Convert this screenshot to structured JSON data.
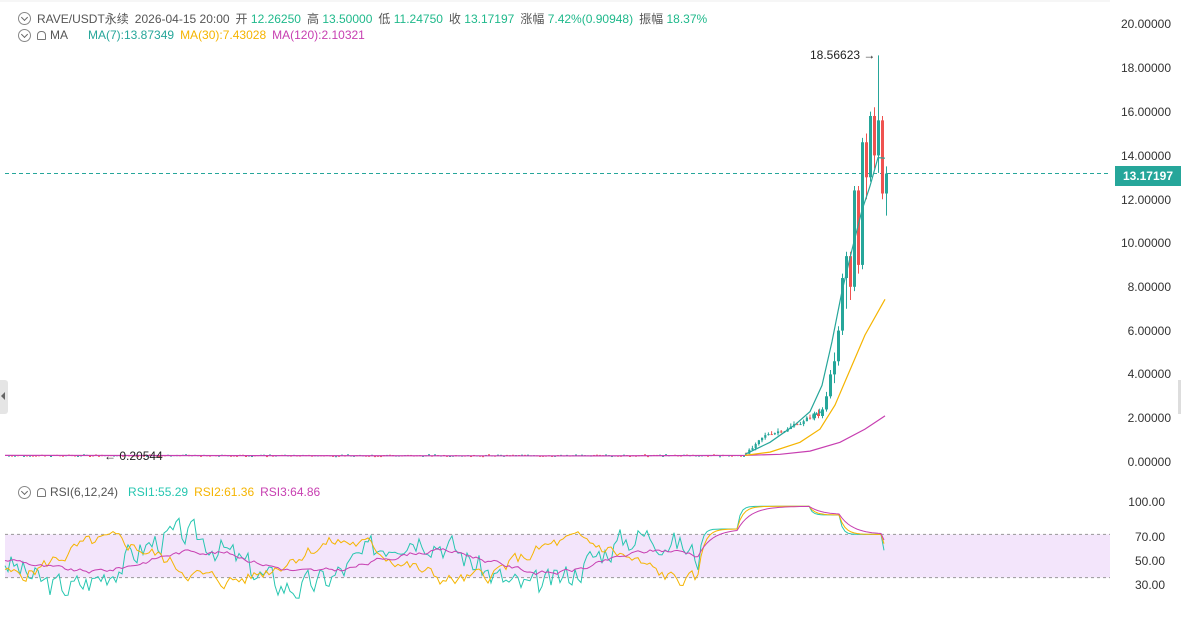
{
  "header": {
    "symbol": "RAVE/USDT永续",
    "datetime": "2026-04-15 20:00",
    "open_label": "开",
    "open_value": "12.26250",
    "high_label": "高",
    "high_value": "13.50000",
    "low_label": "低",
    "low_value": "11.24750",
    "close_label": "收",
    "close_value": "13.17197",
    "change_label": "涨幅",
    "change_value": "7.42%(0.90948)",
    "amplitude_label": "振幅",
    "amplitude_value": "18.37%"
  },
  "ma_legend": {
    "name": "MA",
    "ma7": "MA(7):13.87349",
    "ma30": "MA(30):7.43028",
    "ma120": "MA(120):2.10321"
  },
  "rsi_legend": {
    "name": "RSI(6,12,24)",
    "rsi1": "RSI1:55.29",
    "rsi2": "RSI2:61.36",
    "rsi3": "RSI3:64.86"
  },
  "price_axis": [
    "20.00000",
    "18.00000",
    "16.00000",
    "14.00000",
    "12.00000",
    "10.00000",
    "8.00000",
    "6.00000",
    "4.00000",
    "2.00000",
    "0.00000"
  ],
  "rsi_axis": [
    "100.00",
    "70.00",
    "50.00",
    "30.00"
  ],
  "last_price_tag": "13.17197",
  "annotations": {
    "high_marker": "18.56623",
    "low_marker": "0.20544"
  },
  "colors": {
    "up": "#26a69a",
    "down": "#ef5350",
    "ma7": "#26a69a",
    "ma30": "#f5b400",
    "ma120": "#c73fb1",
    "rsi1": "#26c6b0",
    "rsi2": "#f5b400",
    "rsi3": "#c73fb1",
    "rsi_band": "#f3e5fb"
  },
  "chart_data": {
    "type": "line",
    "title": "RAVE/USDT永续",
    "ylim": [
      0,
      20
    ],
    "highest": 18.56623,
    "lowest": 0.20544,
    "last_close": 13.17197,
    "recent_candles": [
      {
        "o": 2.0,
        "h": 2.3,
        "l": 1.9,
        "c": 2.2
      },
      {
        "o": 2.2,
        "h": 2.4,
        "l": 2.0,
        "c": 2.1
      },
      {
        "o": 2.1,
        "h": 2.5,
        "l": 2.0,
        "c": 2.4
      },
      {
        "o": 2.4,
        "h": 3.2,
        "l": 2.3,
        "c": 3.0
      },
      {
        "o": 3.0,
        "h": 4.2,
        "l": 2.9,
        "c": 4.0
      },
      {
        "o": 4.0,
        "h": 5.0,
        "l": 3.6,
        "c": 4.6
      },
      {
        "o": 4.6,
        "h": 6.2,
        "l": 4.4,
        "c": 6.0
      },
      {
        "o": 6.0,
        "h": 8.6,
        "l": 5.8,
        "c": 8.4
      },
      {
        "o": 8.4,
        "h": 9.6,
        "l": 7.0,
        "c": 9.4
      },
      {
        "o": 9.4,
        "h": 9.6,
        "l": 7.4,
        "c": 8.0
      },
      {
        "o": 8.0,
        "h": 12.6,
        "l": 7.8,
        "c": 12.4
      },
      {
        "o": 12.4,
        "h": 12.6,
        "l": 8.6,
        "c": 9.0
      },
      {
        "o": 9.0,
        "h": 14.8,
        "l": 8.8,
        "c": 14.6
      },
      {
        "o": 14.6,
        "h": 15.0,
        "l": 12.0,
        "c": 13.0
      },
      {
        "o": 13.0,
        "h": 16.0,
        "l": 12.8,
        "c": 15.8
      },
      {
        "o": 15.8,
        "h": 16.2,
        "l": 13.4,
        "c": 14.0
      },
      {
        "o": 14.0,
        "h": 18.56623,
        "l": 13.2,
        "c": 15.6
      },
      {
        "o": 15.6,
        "h": 15.8,
        "l": 12.0,
        "c": 12.26
      },
      {
        "o": 12.26,
        "h": 13.5,
        "l": 11.2475,
        "c": 13.17197
      }
    ],
    "rsi_range": [
      0,
      100
    ],
    "rsi_levels": [
      70,
      50,
      30
    ],
    "rsi_last": {
      "rsi1": 55.29,
      "rsi2": 61.36,
      "rsi3": 64.86
    }
  }
}
